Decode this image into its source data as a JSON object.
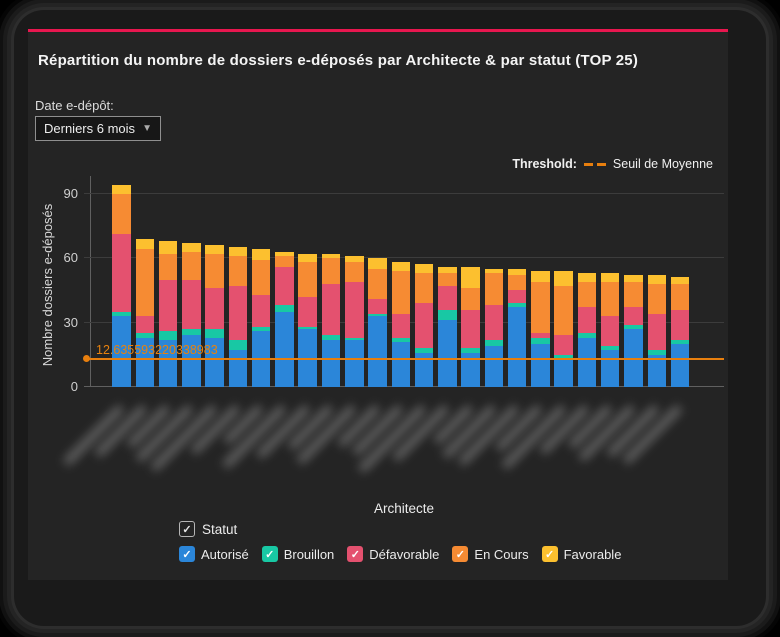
{
  "header": {
    "title": "Répartition du nombre de dossiers e-déposés par Architecte & par statut (TOP 25)"
  },
  "filter": {
    "label": "Date e-dépôt:",
    "value": "Derniers 6 mois",
    "caret_icon": "caret-down"
  },
  "threshold_legend": {
    "label": "Threshold:",
    "name": "Seuil de Moyenne"
  },
  "chart_data": {
    "type": "bar",
    "stacked": true,
    "title": "Répartition du nombre de dossiers e-déposés par Architecte & par statut (TOP 25)",
    "xlabel": "Architecte",
    "ylabel": "Nombre dossiers e-déposés",
    "yticks": [
      0,
      30,
      60,
      90
    ],
    "ylim": [
      0,
      100
    ],
    "grid": true,
    "x_labels_redacted": true,
    "categories_note": "25 architect names blurred/anonymized in source image",
    "threshold": {
      "label": "12.635593220338983",
      "value": 12.635593220338983,
      "name": "Seuil de Moyenne",
      "color": "#e87f0e"
    },
    "legend_title": "Statut",
    "legend_position": "bottom",
    "series": [
      {
        "name": "Autorisé",
        "color": "#2b86d9",
        "values": [
          33,
          23,
          22,
          24,
          23,
          17,
          26,
          35,
          27,
          22,
          22,
          33,
          21,
          16,
          31,
          16,
          19,
          37,
          20,
          13,
          23,
          17,
          27,
          15,
          20
        ]
      },
      {
        "name": "Brouillon",
        "color": "#18c8a4",
        "values": [
          2,
          2,
          4,
          3,
          4,
          5,
          2,
          3,
          1,
          2,
          1,
          1,
          2,
          2,
          5,
          2,
          3,
          2,
          3,
          2,
          2,
          2,
          2,
          2,
          2
        ]
      },
      {
        "name": "Défavorable",
        "color": "#e4516f",
        "values": [
          36,
          8,
          24,
          23,
          19,
          25,
          15,
          18,
          14,
          24,
          26,
          7,
          11,
          21,
          11,
          18,
          16,
          6,
          2,
          9,
          12,
          14,
          8,
          17,
          14
        ]
      },
      {
        "name": "En Cours",
        "color": "#f68b33",
        "values": [
          19,
          31,
          12,
          13,
          16,
          14,
          16,
          5,
          16,
          12,
          9,
          14,
          20,
          14,
          6,
          10,
          15,
          7,
          24,
          23,
          12,
          16,
          12,
          14,
          12
        ]
      },
      {
        "name": "Favorable",
        "color": "#fcc02f",
        "values": [
          4,
          5,
          6,
          4,
          4,
          4,
          5,
          2,
          4,
          2,
          3,
          5,
          4,
          4,
          3,
          10,
          2,
          3,
          5,
          7,
          4,
          4,
          3,
          4,
          3
        ]
      }
    ],
    "totals": [
      94,
      69,
      68,
      67,
      66,
      65,
      64,
      63,
      62,
      62,
      61,
      60,
      58,
      57,
      56,
      56,
      55,
      55,
      54,
      54,
      53,
      53,
      52,
      52,
      51
    ]
  },
  "colors": {
    "card_background": "#242424",
    "window_background": "#1a1a1a",
    "accent_top_border": "#e8174f",
    "threshold": "#e87f0e"
  }
}
